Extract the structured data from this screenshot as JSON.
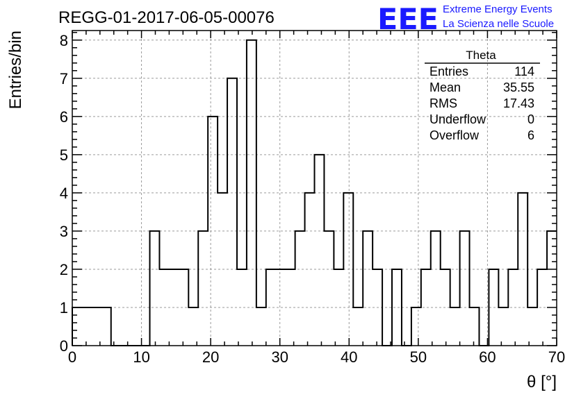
{
  "title": "REGG-01-2017-06-05-00076",
  "logo": {
    "mark": "EEE",
    "line1": "Extreme Energy Events",
    "line2": "La Scienza nelle Scuole",
    "color": "#1a1aff"
  },
  "stats": {
    "name": "Theta",
    "rows": [
      {
        "label": "Entries",
        "value": "114"
      },
      {
        "label": "Mean",
        "value": "35.55"
      },
      {
        "label": "RMS",
        "value": "17.43"
      },
      {
        "label": "Underflow",
        "value": "0"
      },
      {
        "label": "Overflow",
        "value": "6"
      }
    ]
  },
  "chart_data": {
    "type": "bar",
    "histogram": true,
    "xlabel": "θ [°]",
    "ylabel": "Entries/bin",
    "xlim": [
      0,
      70
    ],
    "ylim": [
      0,
      8.25
    ],
    "grid": true,
    "legend_position": "top-right",
    "xticks": [
      0,
      10,
      20,
      30,
      40,
      50,
      60,
      70
    ],
    "yticks": [
      0,
      1,
      2,
      3,
      4,
      5,
      6,
      7,
      8
    ],
    "bin_width": 1.4,
    "values": [
      1,
      1,
      1,
      1,
      0,
      0,
      0,
      0,
      3,
      2,
      2,
      2,
      1,
      3,
      6,
      4,
      7,
      2,
      8,
      1,
      2,
      2,
      2,
      3,
      4,
      5,
      3,
      2,
      4,
      1,
      3,
      2,
      0,
      2,
      0,
      1,
      2,
      3,
      2,
      1,
      3,
      1,
      0,
      2,
      1,
      2,
      4,
      1,
      2,
      3
    ]
  }
}
